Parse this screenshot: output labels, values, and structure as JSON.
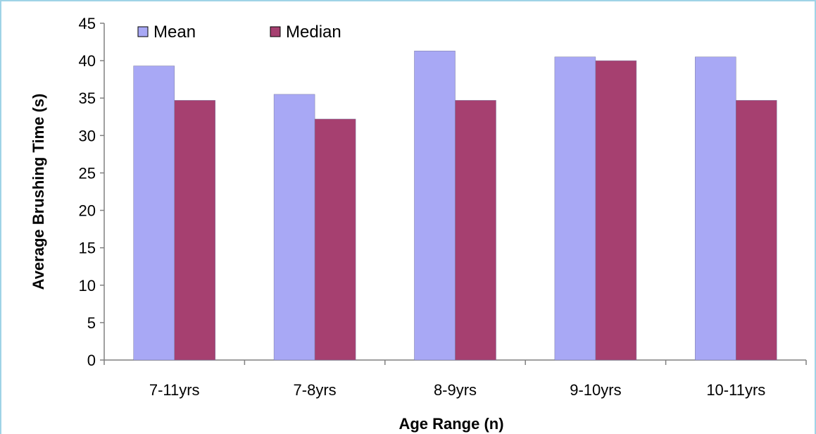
{
  "chart_data": {
    "type": "bar",
    "title": "",
    "xlabel": "Age Range (n)",
    "ylabel": "Average  Brushing Time (s)",
    "categories": [
      "7-11yrs",
      "7-8yrs",
      "8-9yrs",
      "9-10yrs",
      "10-11yrs"
    ],
    "series": [
      {
        "name": "Mean",
        "values": [
          39.3,
          35.5,
          41.3,
          40.5,
          40.5
        ],
        "color": "#a8a8f5"
      },
      {
        "name": "Median",
        "values": [
          34.7,
          32.2,
          34.7,
          40.0,
          34.7
        ],
        "color": "#a64070"
      }
    ],
    "ylim": [
      0,
      45
    ],
    "yticks": [
      0,
      5,
      10,
      15,
      20,
      25,
      30,
      35,
      40,
      45
    ],
    "grid": false,
    "legend": {
      "placement": "top-left"
    }
  }
}
